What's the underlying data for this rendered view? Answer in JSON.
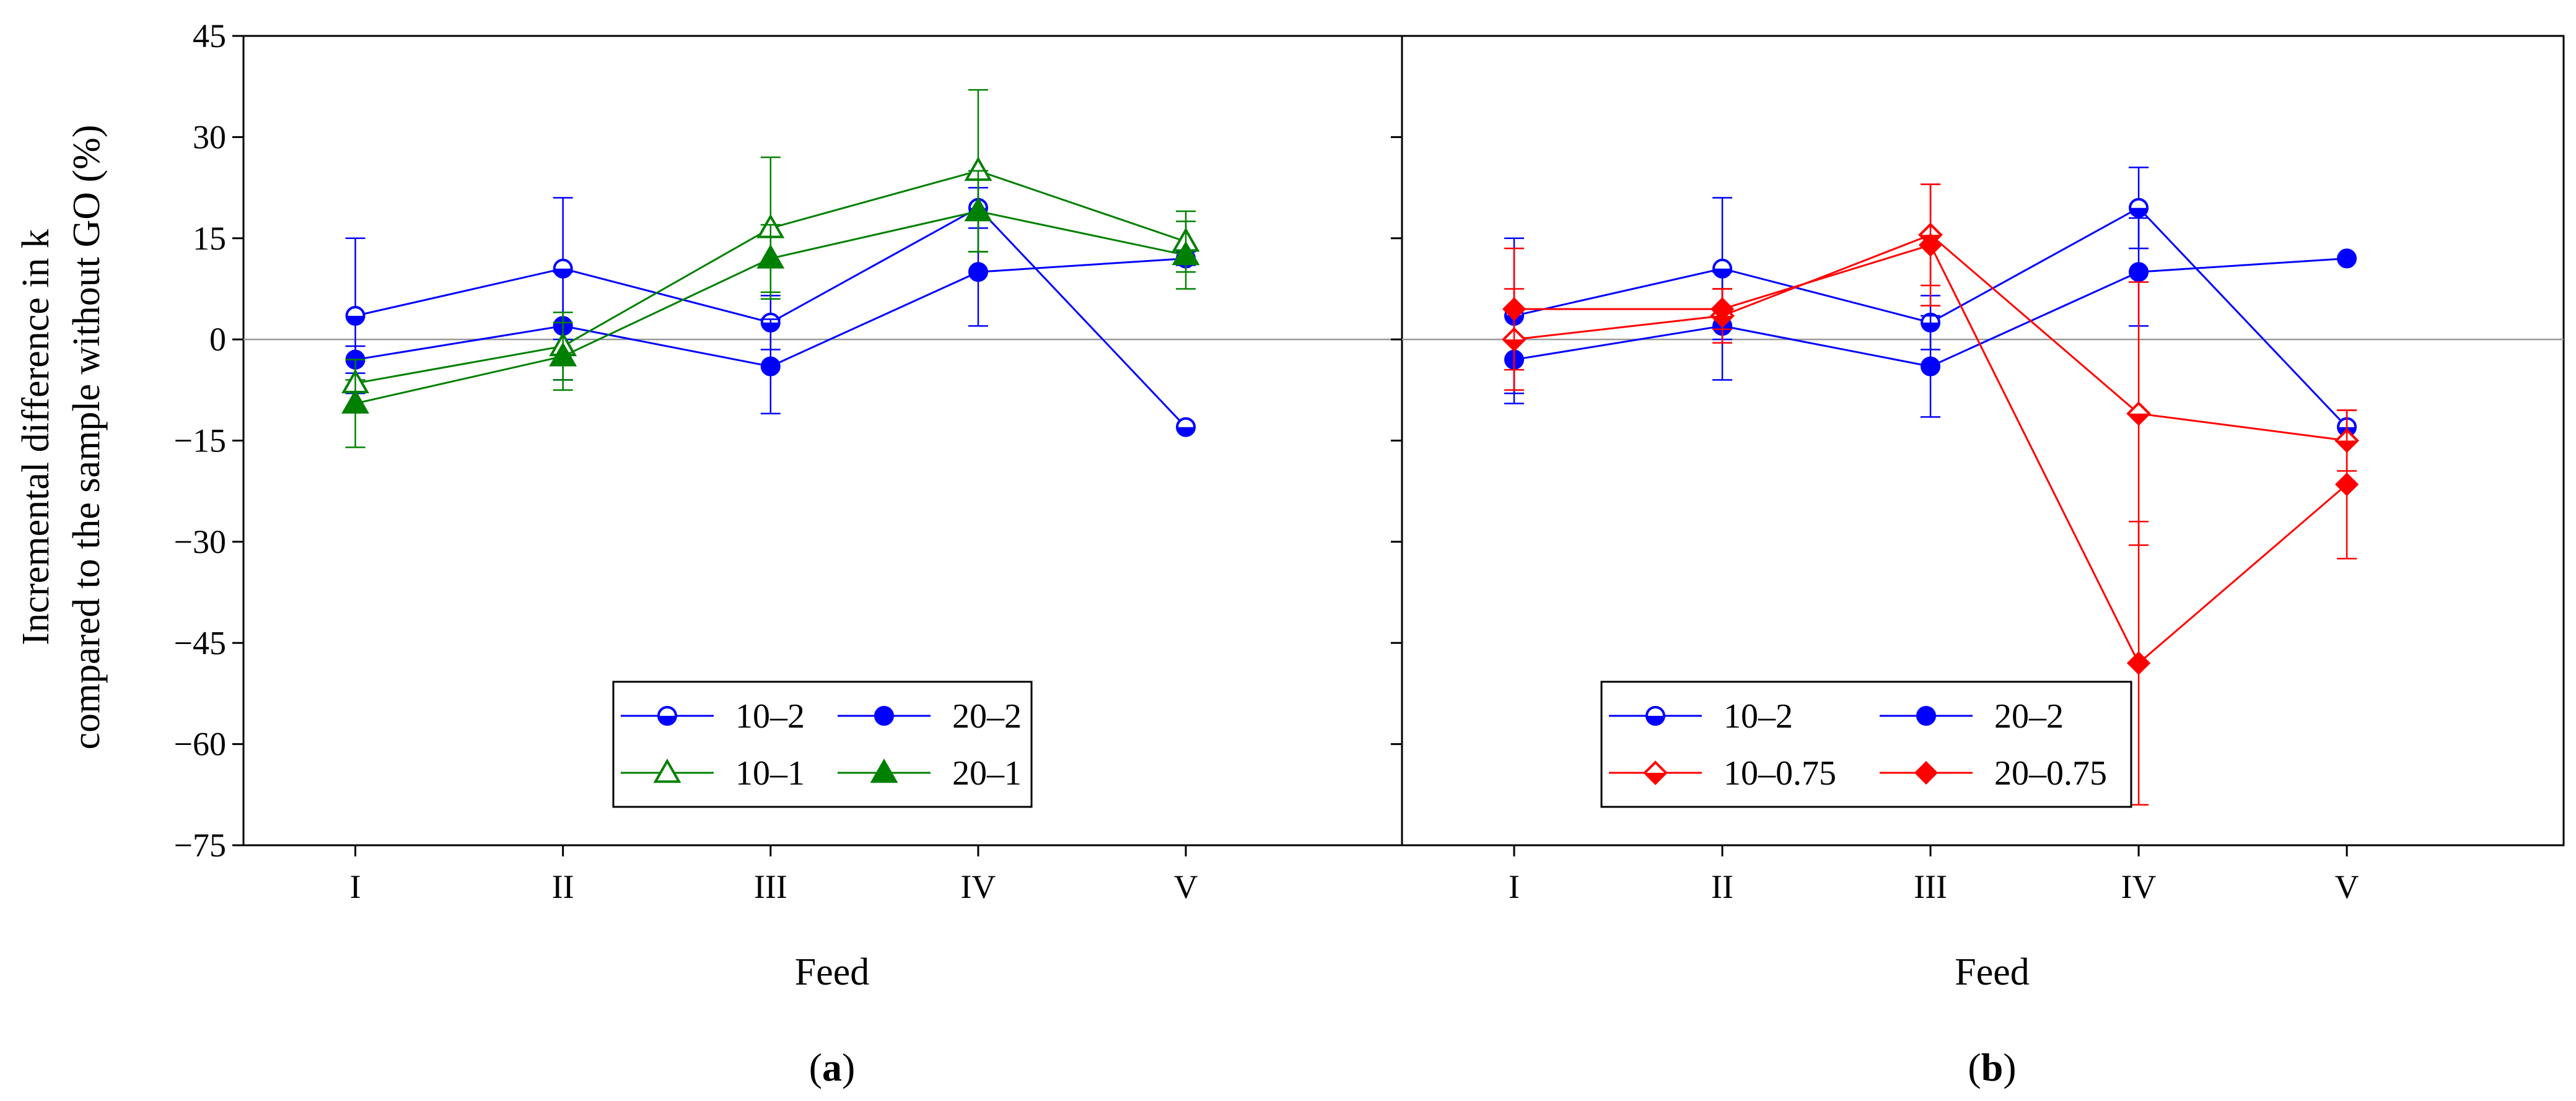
{
  "chart_data": {
    "type": "line",
    "ylabel_lines": [
      "Incremental difference in k",
      "compared to the sample without GO (%)"
    ],
    "ylim": [
      -75,
      45
    ],
    "yticks": [
      "45",
      "30",
      "15",
      "0",
      "−15",
      "−30",
      "−45",
      "−60",
      "−75"
    ],
    "ytick_values": [
      45,
      30,
      15,
      0,
      -15,
      -30,
      -45,
      -60,
      -75
    ],
    "categories": [
      "I",
      "II",
      "III",
      "IV",
      "V"
    ],
    "xlabel": "Feed",
    "zero_line": true,
    "colors": {
      "blue": "#0000ff",
      "green": "#008000",
      "red": "#ff0000",
      "axis": "#000000",
      "zero": "#999999"
    },
    "panels": [
      {
        "caption_open": "(",
        "caption_letter": "a",
        "caption_close": ")",
        "legend_placement": "bottom-center",
        "series": [
          {
            "name": "10–2",
            "color": "#0000ff",
            "marker": "circle-half",
            "values": [
              3.5,
              10.5,
              2.5,
              19.5,
              -13
            ],
            "errors": [
              11.5,
              10.5,
              4,
              3,
              0
            ]
          },
          {
            "name": "20–2",
            "color": "#0000ff",
            "marker": "circle-filled",
            "values": [
              -3,
              2,
              -4,
              10,
              12
            ],
            "errors": [
              2,
              8,
              7,
              8,
              1
            ]
          },
          {
            "name": "10–1",
            "color": "#008000",
            "marker": "triangle-open",
            "values": [
              -6.5,
              -1,
              16.5,
              25,
              14.5
            ],
            "errors": [
              0.5,
              5,
              10.5,
              12,
              4.5
            ]
          },
          {
            "name": "20–1",
            "color": "#008000",
            "marker": "triangle-filled",
            "values": [
              -9.5,
              -2.5,
              12,
              19,
              12.5
            ],
            "errors": [
              6.5,
              5,
              5,
              6,
              5
            ]
          }
        ]
      },
      {
        "caption_open": "(",
        "caption_letter": "b",
        "caption_close": ")",
        "legend_placement": "bottom-center",
        "series": [
          {
            "name": "10–2",
            "color": "#0000ff",
            "marker": "circle-half",
            "values": [
              3.5,
              10.5,
              2.5,
              19.5,
              -13
            ],
            "errors": [
              11.5,
              10.5,
              4,
              6,
              0
            ]
          },
          {
            "name": "20–2",
            "color": "#0000ff",
            "marker": "circle-filled",
            "values": [
              -3,
              2,
              -4,
              10,
              12
            ],
            "errors": [
              6.5,
              8,
              7.5,
              8,
              0
            ]
          },
          {
            "name": "10–0.75",
            "color": "#ff0000",
            "marker": "diamond-open",
            "values": [
              0,
              3.5,
              15.5,
              -11,
              -15
            ],
            "errors": [
              7.5,
              4,
              7.5,
              19.5,
              4.5
            ]
          },
          {
            "name": "20–0.75",
            "color": "#ff0000",
            "marker": "diamond-filled",
            "values": [
              4.5,
              4.5,
              14,
              -48,
              -21.5
            ],
            "errors": [
              9,
              3,
              9,
              21,
              11
            ]
          }
        ]
      }
    ]
  }
}
